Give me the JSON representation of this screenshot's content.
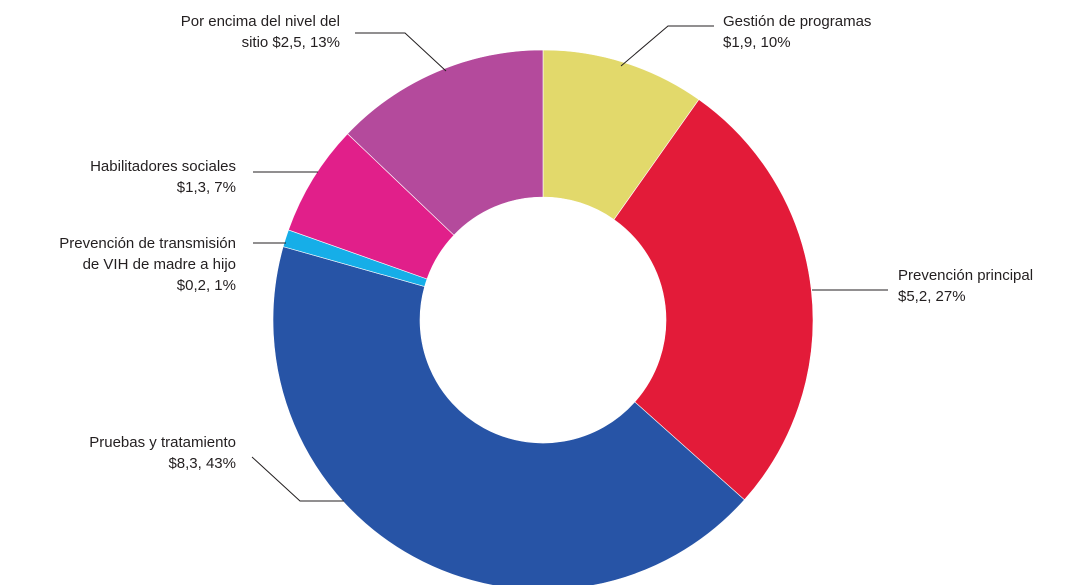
{
  "chart_data": {
    "type": "pie",
    "donut": true,
    "start": "12 o'clock",
    "direction": "clockwise",
    "slices": [
      {
        "label": "Gestión de programas",
        "value": 1.9,
        "value_text": "$1,9",
        "percent": "10%",
        "color": "#e2d96b"
      },
      {
        "label": "Prevención principal",
        "value": 5.2,
        "value_text": "$5,2",
        "percent": "27%",
        "color": "#e31b39"
      },
      {
        "label": "Pruebas y tratamiento",
        "value": 8.3,
        "value_text": "$8,3",
        "percent": "43%",
        "color": "#2754a6"
      },
      {
        "label": "Prevención de transmisión de VIH de madre a hijo",
        "value": 0.2,
        "value_text": "$0,2",
        "percent": "1%",
        "color": "#16aee8"
      },
      {
        "label": "Habilitadores sociales",
        "value": 1.3,
        "value_text": "$1,3",
        "percent": "7%",
        "color": "#e11f8a"
      },
      {
        "label": "Por encima del nivel del sitio",
        "value": 2.5,
        "value_text": "$2,5",
        "percent": "13%",
        "color": "#b44a9c"
      }
    ],
    "labels": [
      [
        "Gestión de programas",
        "$1,9, 10%"
      ],
      [
        "Prevención principal",
        "$5,2, 27%"
      ],
      [
        "Pruebas y tratamiento",
        "$8,3, 43%"
      ],
      [
        "Prevención de transmisión",
        "de VIH de madre a hijo",
        "$0,2, 1%"
      ],
      [
        "Habilitadores sociales",
        "$1,3, 7%"
      ],
      [
        "Por encima del nivel del",
        "sitio $2,5, 13%"
      ]
    ]
  }
}
